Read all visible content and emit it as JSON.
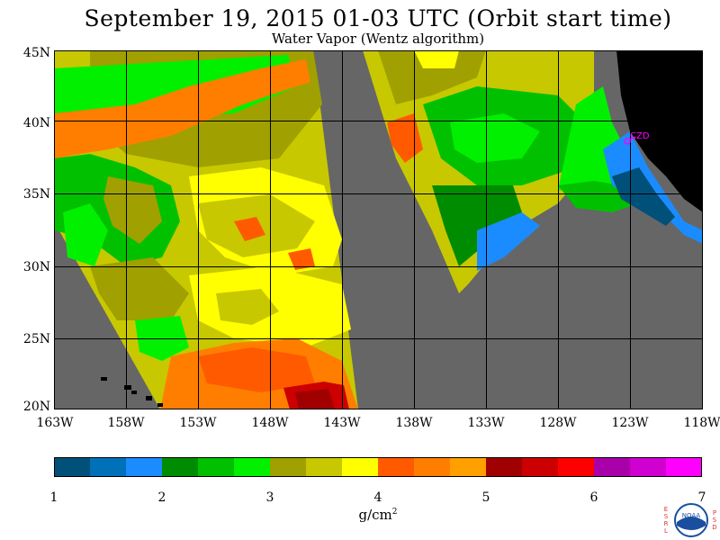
{
  "title": "September 19, 2015  01-03 UTC  (Orbit start time)",
  "subtitle": "Water Vapor (Wentz algorithm)",
  "map": {
    "lat_labels": [
      "45N",
      "40N",
      "35N",
      "30N",
      "25N",
      "20N"
    ],
    "lon_labels": [
      "163W",
      "158W",
      "153W",
      "148W",
      "143W",
      "138W",
      "133W",
      "128W",
      "123W",
      "118W"
    ],
    "station_label": "CZD",
    "colors": {
      "no_data": "#666666",
      "land": "#000000",
      "grid": "#000000",
      "station": "#ff00ff"
    }
  },
  "colorbar": {
    "ticks": [
      "1",
      "2",
      "3",
      "4",
      "5",
      "6",
      "7"
    ],
    "colors": [
      "#00507a",
      "#0070b8",
      "#1a8cff",
      "#008c00",
      "#00c000",
      "#00f000",
      "#a0a000",
      "#c8c800",
      "#ffff00",
      "#ff5a00",
      "#ff7e00",
      "#ffa000",
      "#a00000",
      "#cc0000",
      "#ff0000",
      "#aa00aa",
      "#d000d0",
      "#ff00ff"
    ],
    "unit": "g/cm",
    "unit_sup": "2"
  },
  "logo": {
    "left_letters": [
      "E",
      "S",
      "R",
      "L"
    ],
    "right_letters": [
      "P",
      "S",
      "D"
    ],
    "center": "NOAA"
  }
}
